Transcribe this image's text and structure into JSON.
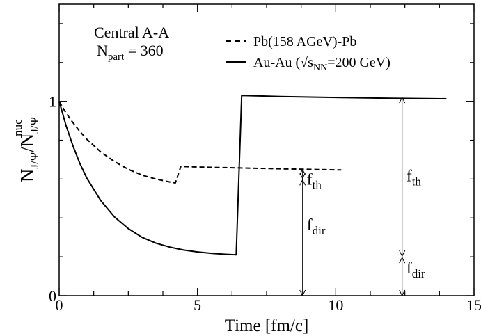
{
  "chart_data": {
    "type": "line",
    "title": "",
    "xlabel": "Time [fm/c]",
    "xlim": [
      0,
      15
    ],
    "ylim": [
      0,
      1.5
    ],
    "xticks": [
      0,
      5,
      10,
      15
    ],
    "xtick_labels": [
      "0",
      "5",
      "10",
      "15"
    ],
    "yticks": [
      0,
      1
    ],
    "ytick_labels": [
      "0",
      "1"
    ],
    "grid": false,
    "legend_position": "top-right",
    "ylabel": {
      "base": "N",
      "sub1": "J/Ψ",
      "mid": "/N",
      "sub2": "J/Ψ",
      "sup": "nuc"
    },
    "annotation": {
      "line1": "Central A-A",
      "line2_base": "N",
      "line2_sub": "part",
      "line2_rest": " = 360"
    },
    "series": [
      {
        "name": "Pb(158 AGeV)-Pb",
        "legend": {
          "text": "Pb(158 AGeV)-Pb"
        },
        "style": "dashed",
        "points": [
          [
            0,
            1.0
          ],
          [
            0.1,
            0.975
          ],
          [
            0.25,
            0.94
          ],
          [
            0.5,
            0.89
          ],
          [
            0.75,
            0.845
          ],
          [
            1.0,
            0.805
          ],
          [
            1.5,
            0.74
          ],
          [
            2.0,
            0.69
          ],
          [
            2.5,
            0.65
          ],
          [
            3.0,
            0.62
          ],
          [
            3.5,
            0.6
          ],
          [
            4.0,
            0.585
          ],
          [
            4.2,
            0.58
          ],
          [
            4.4,
            0.665
          ],
          [
            5.0,
            0.662
          ],
          [
            6.0,
            0.659
          ],
          [
            7.0,
            0.656
          ],
          [
            8.0,
            0.653
          ],
          [
            9.0,
            0.65
          ],
          [
            10.2,
            0.647
          ]
        ]
      },
      {
        "name": "Au-Au",
        "legend": {
          "pre": "Au-Au (√s",
          "sub": "NN",
          "post": "=200 GeV)"
        },
        "style": "solid",
        "points": [
          [
            0,
            1.0
          ],
          [
            0.1,
            0.95
          ],
          [
            0.25,
            0.875
          ],
          [
            0.5,
            0.77
          ],
          [
            0.75,
            0.68
          ],
          [
            1.0,
            0.605
          ],
          [
            1.5,
            0.49
          ],
          [
            2.0,
            0.405
          ],
          [
            2.5,
            0.345
          ],
          [
            3.0,
            0.3
          ],
          [
            3.5,
            0.27
          ],
          [
            4.0,
            0.25
          ],
          [
            4.5,
            0.235
          ],
          [
            5.0,
            0.225
          ],
          [
            5.5,
            0.218
          ],
          [
            6.0,
            0.213
          ],
          [
            6.4,
            0.21
          ],
          [
            6.6,
            1.03
          ],
          [
            8.0,
            1.025
          ],
          [
            10.0,
            1.02
          ],
          [
            12.0,
            1.016
          ],
          [
            14.0,
            1.013
          ]
        ]
      }
    ],
    "markers": [
      {
        "x": 8.8,
        "y_bottom": 0.0,
        "y_split": 0.6,
        "y_top": 0.65,
        "label_top": {
          "base": "f",
          "sub": "th"
        },
        "label_bottom": {
          "base": "f",
          "sub": "dir"
        }
      },
      {
        "x": 12.4,
        "y_bottom": 0.0,
        "y_split": 0.2,
        "y_top": 1.02,
        "label_top": {
          "base": "f",
          "sub": "th"
        },
        "label_bottom": {
          "base": "f",
          "sub": "dir"
        }
      }
    ]
  }
}
